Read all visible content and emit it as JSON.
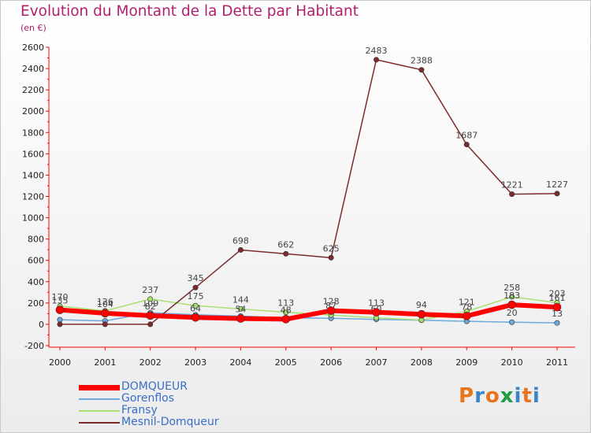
{
  "title": "Evolution du Montant de la Dette par Habitant",
  "subtitle": "(en €)",
  "logo": {
    "text": "Proxiti",
    "colors": [
      "#e8741c",
      "#3a84c7",
      "#e8741c",
      "#1e9c44",
      "#3a84c7",
      "#e8741c",
      "#3a84c7"
    ]
  },
  "chart_data": {
    "type": "line",
    "categories": [
      "2000",
      "2001",
      "2002",
      "2003",
      "2004",
      "2005",
      "2006",
      "2007",
      "2008",
      "2009",
      "2010",
      "2011"
    ],
    "ylim": [
      -200,
      2600
    ],
    "yticks": [
      -200,
      0,
      200,
      400,
      600,
      800,
      1000,
      1200,
      1400,
      1600,
      1800,
      2000,
      2200,
      2400,
      2600
    ],
    "grid": false,
    "legend_position": "bottom-left",
    "series": [
      {
        "name": "Gorenflos",
        "color": "#6fa8dc",
        "width": 1.5,
        "values": [
          43,
          32,
          109,
          89,
          77,
          61,
          57,
          46,
          38,
          28,
          20,
          13
        ],
        "labels": [
          "",
          "",
          "109",
          "",
          "",
          "",
          "",
          "",
          "",
          "",
          "20",
          "13"
        ]
      },
      {
        "name": "Fransy",
        "color": "#a8e070",
        "width": 1.5,
        "values": [
          170,
          126,
          237,
          175,
          144,
          113,
          87,
          60,
          40,
          121,
          258,
          203
        ],
        "labels": [
          "170",
          "126",
          "237",
          "175",
          "144",
          "113",
          "87",
          "60",
          "",
          "121",
          "258",
          "203"
        ]
      },
      {
        "name": "Mesnil-Domqueur",
        "color": "#7b2b2b",
        "width": 1.5,
        "values": [
          0,
          0,
          0,
          345,
          698,
          662,
          625,
          2483,
          2388,
          1687,
          1221,
          1227
        ],
        "labels": [
          "",
          "",
          "",
          "345",
          "698",
          "662",
          "625",
          "2483",
          "2388",
          "1687",
          "1221",
          "1227"
        ]
      },
      {
        "name": "DOMQUEUR",
        "color": "#ff0000",
        "width": 6,
        "values": [
          135,
          104,
          82,
          64,
          54,
          48,
          128,
          113,
          94,
          78,
          183,
          161
        ],
        "labels": [
          "135",
          "104",
          "82",
          "64",
          "54",
          "48",
          "128",
          "113",
          "94",
          "78",
          "183",
          "161"
        ]
      }
    ],
    "legend_order": [
      "DOMQUEUR",
      "Gorenflos",
      "Fransy",
      "Mesnil-Domqueur"
    ],
    "legend_text_color": "#3a6ec8"
  }
}
